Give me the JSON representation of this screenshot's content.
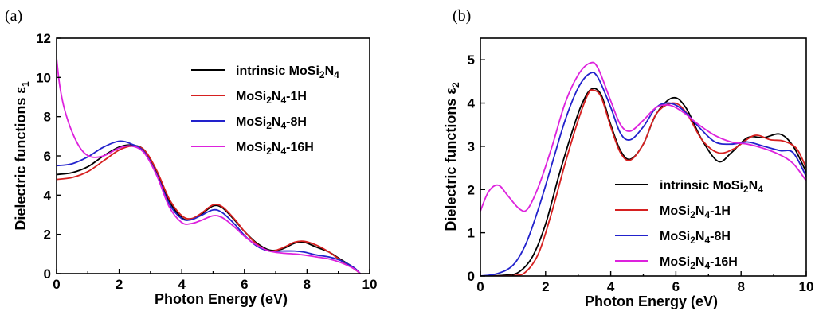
{
  "chart_data": [
    {
      "type": "line",
      "panel_label": "(a)",
      "xlabel": "Photon Energy (eV)",
      "ylabel": "Dielectric functions ε",
      "ylabel_sub": "1",
      "xlim": [
        0,
        10
      ],
      "ylim": [
        0,
        12
      ],
      "xticks": [
        0,
        2,
        4,
        6,
        8,
        10
      ],
      "yticks": [
        0,
        2,
        4,
        6,
        8,
        10,
        12
      ],
      "grid": false,
      "legend_position": "top-right",
      "series": [
        {
          "name": "intrinsic MoSi2N4",
          "color": "#000000",
          "points": [
            [
              0,
              5.05
            ],
            [
              0.5,
              5.15
            ],
            [
              1,
              5.45
            ],
            [
              1.5,
              6.0
            ],
            [
              2,
              6.45
            ],
            [
              2.4,
              6.55
            ],
            [
              2.8,
              6.3
            ],
            [
              3.2,
              5.2
            ],
            [
              3.6,
              3.7
            ],
            [
              4,
              2.85
            ],
            [
              4.3,
              2.75
            ],
            [
              4.6,
              3.0
            ],
            [
              5,
              3.45
            ],
            [
              5.3,
              3.35
            ],
            [
              5.7,
              2.7
            ],
            [
              6,
              2.15
            ],
            [
              6.4,
              1.55
            ],
            [
              6.8,
              1.2
            ],
            [
              7.2,
              1.25
            ],
            [
              7.6,
              1.55
            ],
            [
              7.9,
              1.6
            ],
            [
              8.3,
              1.35
            ],
            [
              8.7,
              1.1
            ],
            [
              9.1,
              0.7
            ],
            [
              9.5,
              0.3
            ],
            [
              9.7,
              0.0
            ]
          ]
        },
        {
          "name": "MoSi2N4-1H",
          "color": "#d62020",
          "points": [
            [
              0,
              4.8
            ],
            [
              0.5,
              4.9
            ],
            [
              1,
              5.2
            ],
            [
              1.5,
              5.75
            ],
            [
              2,
              6.3
            ],
            [
              2.4,
              6.5
            ],
            [
              2.8,
              6.3
            ],
            [
              3.2,
              5.25
            ],
            [
              3.6,
              3.8
            ],
            [
              4,
              2.95
            ],
            [
              4.3,
              2.8
            ],
            [
              4.6,
              3.05
            ],
            [
              5,
              3.5
            ],
            [
              5.3,
              3.4
            ],
            [
              5.7,
              2.75
            ],
            [
              6,
              2.15
            ],
            [
              6.4,
              1.5
            ],
            [
              6.8,
              1.15
            ],
            [
              7.2,
              1.3
            ],
            [
              7.6,
              1.6
            ],
            [
              7.9,
              1.65
            ],
            [
              8.3,
              1.45
            ],
            [
              8.7,
              1.1
            ],
            [
              9.1,
              0.65
            ],
            [
              9.5,
              0.25
            ],
            [
              9.7,
              0.0
            ]
          ]
        },
        {
          "name": "MoSi2N4-8H",
          "color": "#2222cc",
          "points": [
            [
              0,
              5.5
            ],
            [
              0.5,
              5.6
            ],
            [
              1,
              5.95
            ],
            [
              1.5,
              6.45
            ],
            [
              2,
              6.75
            ],
            [
              2.4,
              6.6
            ],
            [
              2.8,
              6.2
            ],
            [
              3.2,
              5.05
            ],
            [
              3.6,
              3.55
            ],
            [
              4,
              2.8
            ],
            [
              4.3,
              2.75
            ],
            [
              4.6,
              2.95
            ],
            [
              5,
              3.25
            ],
            [
              5.3,
              3.1
            ],
            [
              5.7,
              2.5
            ],
            [
              6,
              1.95
            ],
            [
              6.4,
              1.4
            ],
            [
              6.8,
              1.15
            ],
            [
              7.2,
              1.15
            ],
            [
              7.6,
              1.15
            ],
            [
              7.9,
              1.1
            ],
            [
              8.3,
              0.95
            ],
            [
              8.7,
              0.85
            ],
            [
              9.1,
              0.65
            ],
            [
              9.5,
              0.3
            ],
            [
              9.7,
              0.0
            ]
          ]
        },
        {
          "name": "MoSi2N4-16H",
          "color": "#dd22dd",
          "points": [
            [
              0,
              11.0
            ],
            [
              0.1,
              9.6
            ],
            [
              0.25,
              8.4
            ],
            [
              0.5,
              7.2
            ],
            [
              0.8,
              6.3
            ],
            [
              1.1,
              5.95
            ],
            [
              1.5,
              6.0
            ],
            [
              2,
              6.4
            ],
            [
              2.4,
              6.5
            ],
            [
              2.8,
              6.15
            ],
            [
              3.2,
              5.0
            ],
            [
              3.6,
              3.4
            ],
            [
              4,
              2.6
            ],
            [
              4.3,
              2.55
            ],
            [
              4.6,
              2.7
            ],
            [
              5,
              2.95
            ],
            [
              5.3,
              2.85
            ],
            [
              5.7,
              2.35
            ],
            [
              6,
              1.9
            ],
            [
              6.4,
              1.45
            ],
            [
              6.8,
              1.15
            ],
            [
              7.2,
              1.05
            ],
            [
              7.6,
              1.0
            ],
            [
              7.9,
              0.95
            ],
            [
              8.3,
              0.85
            ],
            [
              8.7,
              0.75
            ],
            [
              9.1,
              0.55
            ],
            [
              9.5,
              0.25
            ],
            [
              9.7,
              0.0
            ]
          ]
        }
      ]
    },
    {
      "type": "line",
      "panel_label": "(b)",
      "xlabel": "Photon Energy (eV)",
      "ylabel": "Dielectric functions ε",
      "ylabel_sub": "2",
      "xlim": [
        0,
        10
      ],
      "ylim": [
        0,
        5.5
      ],
      "xticks": [
        0,
        2,
        4,
        6,
        8,
        10
      ],
      "yticks": [
        0,
        1,
        2,
        3,
        4,
        5
      ],
      "grid": false,
      "legend_position": "bottom-right",
      "series": [
        {
          "name": "intrinsic MoSi2N4",
          "color": "#000000",
          "points": [
            [
              0,
              0
            ],
            [
              0.8,
              0.02
            ],
            [
              1.2,
              0.1
            ],
            [
              1.6,
              0.45
            ],
            [
              2,
              1.2
            ],
            [
              2.4,
              2.3
            ],
            [
              2.8,
              3.3
            ],
            [
              3.1,
              3.95
            ],
            [
              3.4,
              4.32
            ],
            [
              3.7,
              4.2
            ],
            [
              4,
              3.5
            ],
            [
              4.3,
              2.9
            ],
            [
              4.6,
              2.7
            ],
            [
              5,
              3.05
            ],
            [
              5.4,
              3.75
            ],
            [
              5.9,
              4.12
            ],
            [
              6.3,
              3.9
            ],
            [
              6.8,
              3.15
            ],
            [
              7.3,
              2.65
            ],
            [
              7.7,
              2.85
            ],
            [
              8.2,
              3.2
            ],
            [
              8.7,
              3.2
            ],
            [
              9.2,
              3.28
            ],
            [
              9.6,
              3.0
            ],
            [
              10,
              2.4
            ]
          ]
        },
        {
          "name": "MoSi2N4-1H",
          "color": "#d62020",
          "points": [
            [
              0,
              0
            ],
            [
              1,
              0.01
            ],
            [
              1.4,
              0.1
            ],
            [
              1.8,
              0.55
            ],
            [
              2.2,
              1.5
            ],
            [
              2.6,
              2.6
            ],
            [
              3,
              3.6
            ],
            [
              3.3,
              4.2
            ],
            [
              3.45,
              4.3
            ],
            [
              3.7,
              4.15
            ],
            [
              4,
              3.45
            ],
            [
              4.3,
              2.85
            ],
            [
              4.6,
              2.68
            ],
            [
              5,
              3.05
            ],
            [
              5.4,
              3.75
            ],
            [
              5.9,
              4.0
            ],
            [
              6.3,
              3.8
            ],
            [
              6.8,
              3.15
            ],
            [
              7.3,
              2.85
            ],
            [
              7.8,
              2.95
            ],
            [
              8.4,
              3.25
            ],
            [
              8.9,
              3.15
            ],
            [
              9.3,
              3.12
            ],
            [
              9.7,
              2.95
            ],
            [
              10,
              2.5
            ]
          ]
        },
        {
          "name": "MoSi2N4-8H",
          "color": "#2222cc",
          "points": [
            [
              0,
              0
            ],
            [
              0.5,
              0.05
            ],
            [
              1,
              0.25
            ],
            [
              1.4,
              0.75
            ],
            [
              1.8,
              1.6
            ],
            [
              2.2,
              2.6
            ],
            [
              2.6,
              3.6
            ],
            [
              3,
              4.35
            ],
            [
              3.35,
              4.68
            ],
            [
              3.6,
              4.6
            ],
            [
              4,
              3.9
            ],
            [
              4.3,
              3.3
            ],
            [
              4.6,
              3.15
            ],
            [
              5,
              3.45
            ],
            [
              5.4,
              3.9
            ],
            [
              5.8,
              4.0
            ],
            [
              6.2,
              3.85
            ],
            [
              6.7,
              3.45
            ],
            [
              7.2,
              3.1
            ],
            [
              7.7,
              3.05
            ],
            [
              8.2,
              3.1
            ],
            [
              8.7,
              3.0
            ],
            [
              9.2,
              2.9
            ],
            [
              9.6,
              2.85
            ],
            [
              10,
              2.3
            ]
          ]
        },
        {
          "name": "MoSi2N4-16H",
          "color": "#dd22dd",
          "points": [
            [
              0,
              1.5
            ],
            [
              0.25,
              1.95
            ],
            [
              0.55,
              2.1
            ],
            [
              0.85,
              1.85
            ],
            [
              1.2,
              1.55
            ],
            [
              1.45,
              1.55
            ],
            [
              1.8,
              2.1
            ],
            [
              2.2,
              3.0
            ],
            [
              2.6,
              4.0
            ],
            [
              3,
              4.65
            ],
            [
              3.35,
              4.92
            ],
            [
              3.6,
              4.82
            ],
            [
              4,
              4.05
            ],
            [
              4.3,
              3.5
            ],
            [
              4.6,
              3.35
            ],
            [
              5,
              3.6
            ],
            [
              5.4,
              3.9
            ],
            [
              5.8,
              3.95
            ],
            [
              6.2,
              3.8
            ],
            [
              6.7,
              3.5
            ],
            [
              7.2,
              3.25
            ],
            [
              7.7,
              3.1
            ],
            [
              8.2,
              3.05
            ],
            [
              8.7,
              2.95
            ],
            [
              9.2,
              2.8
            ],
            [
              9.6,
              2.6
            ],
            [
              10,
              2.2
            ]
          ]
        }
      ]
    }
  ]
}
